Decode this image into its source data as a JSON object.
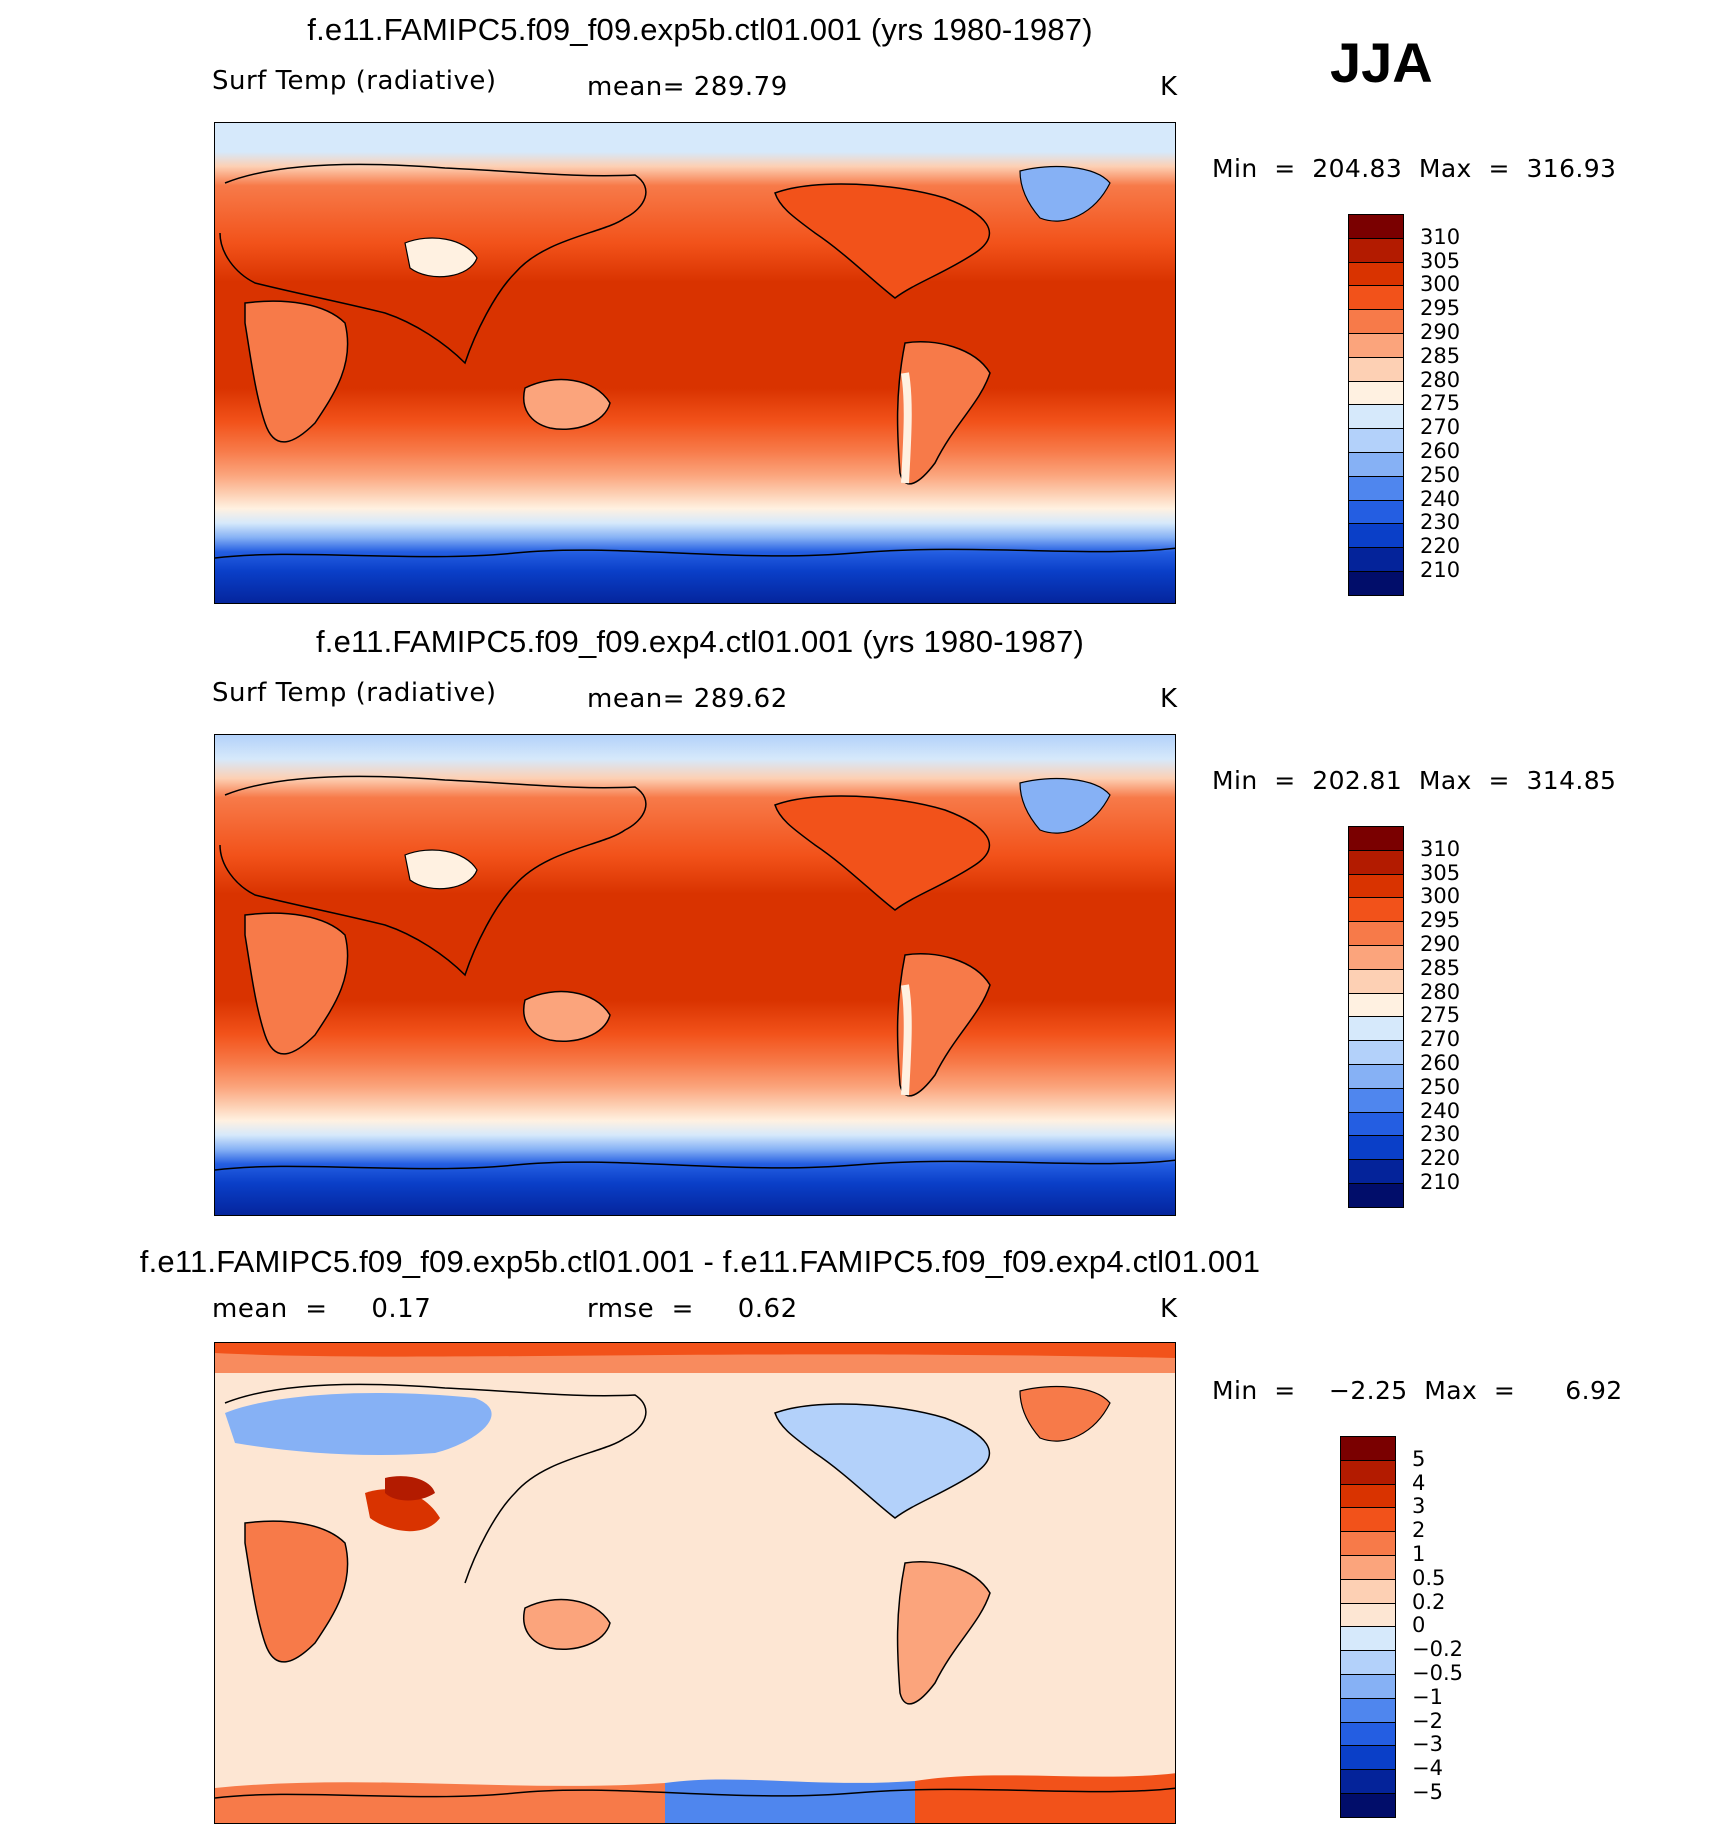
{
  "season": "JJA",
  "panels": [
    {
      "title": "f.e11.FAMIPC5.f09_f09.exp5b.ctl01.001 (yrs 1980-1987)",
      "left_label": "Surf Temp (radiative)",
      "center_label": "mean=  289.79",
      "units": "K",
      "minmax": "Min  =  204.83  Max  =  316.93",
      "colorbar": {
        "levels": [
          "310",
          "305",
          "300",
          "295",
          "290",
          "285",
          "280",
          "275",
          "270",
          "260",
          "250",
          "240",
          "230",
          "220",
          "210"
        ],
        "colors": [
          "#7a0000",
          "#b31b00",
          "#d93300",
          "#f2521a",
          "#f77a49",
          "#fba47c",
          "#fdd0b4",
          "#fff1e1",
          "#d6e9fb",
          "#b3d1fa",
          "#86b1f5",
          "#4f86ee",
          "#245ee2",
          "#0a3fc8",
          "#04239a",
          "#010d6a"
        ]
      }
    },
    {
      "title": "f.e11.FAMIPC5.f09_f09.exp4.ctl01.001 (yrs 1980-1987)",
      "left_label": "Surf Temp (radiative)",
      "center_label": "mean=  289.62",
      "units": "K",
      "minmax": "Min  =  202.81  Max  =  314.85",
      "colorbar": {
        "levels": [
          "310",
          "305",
          "300",
          "295",
          "290",
          "285",
          "280",
          "275",
          "270",
          "260",
          "250",
          "240",
          "230",
          "220",
          "210"
        ],
        "colors": [
          "#7a0000",
          "#b31b00",
          "#d93300",
          "#f2521a",
          "#f77a49",
          "#fba47c",
          "#fdd0b4",
          "#fff1e1",
          "#d6e9fb",
          "#b3d1fa",
          "#86b1f5",
          "#4f86ee",
          "#245ee2",
          "#0a3fc8",
          "#04239a",
          "#010d6a"
        ]
      }
    },
    {
      "title": "f.e11.FAMIPC5.f09_f09.exp5b.ctl01.001 - f.e11.FAMIPC5.f09_f09.exp4.ctl01.001",
      "left_label": "mean  =     0.17",
      "center_label": "rmse  =     0.62",
      "units": "K",
      "minmax": "Min  =    −2.25  Max  =      6.92",
      "colorbar": {
        "levels": [
          "5",
          "4",
          "3",
          "2",
          "1",
          "0.5",
          "0.2",
          "0",
          "−0.2",
          "−0.5",
          "−1",
          "−2",
          "−3",
          "−4",
          "−5"
        ],
        "colors": [
          "#7a0000",
          "#b31b00",
          "#d93300",
          "#f2521a",
          "#f77a49",
          "#fba47c",
          "#fdd0b4",
          "#fde6d3",
          "#d6e9fb",
          "#b3d1fa",
          "#86b1f5",
          "#4f86ee",
          "#245ee2",
          "#0a3fc8",
          "#04239a",
          "#010d6a"
        ]
      }
    }
  ]
}
